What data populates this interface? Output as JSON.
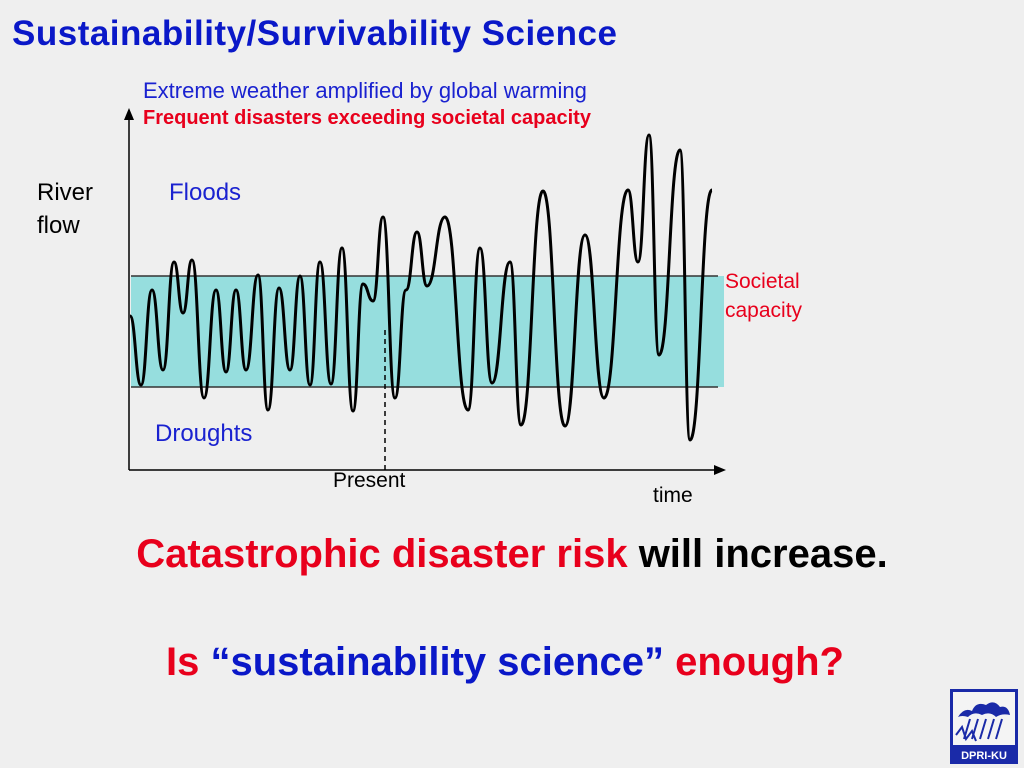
{
  "title": "Sustainability/Survivability Science",
  "subtitle_line1": "Extreme weather amplified by global warming",
  "subtitle_line2": "Frequent disasters exceeding societal capacity",
  "y_axis_label": "River flow",
  "x_axis_label": "time",
  "floods_label": "Floods",
  "droughts_label": "Droughts",
  "capacity_label": "Societal capacity",
  "present_label": "Present",
  "statement1": {
    "red": "Catastrophic disaster risk",
    "black": " will increase."
  },
  "statement2": {
    "red_start": "Is ",
    "blue": "“sustainability science”",
    "red_end": " enough?"
  },
  "logo_text": "DPRI-KU",
  "colors": {
    "title_blue": "#0a18c8",
    "accent_red": "#e8001c",
    "band_fill": "#96dede",
    "background": "#efefef"
  }
}
